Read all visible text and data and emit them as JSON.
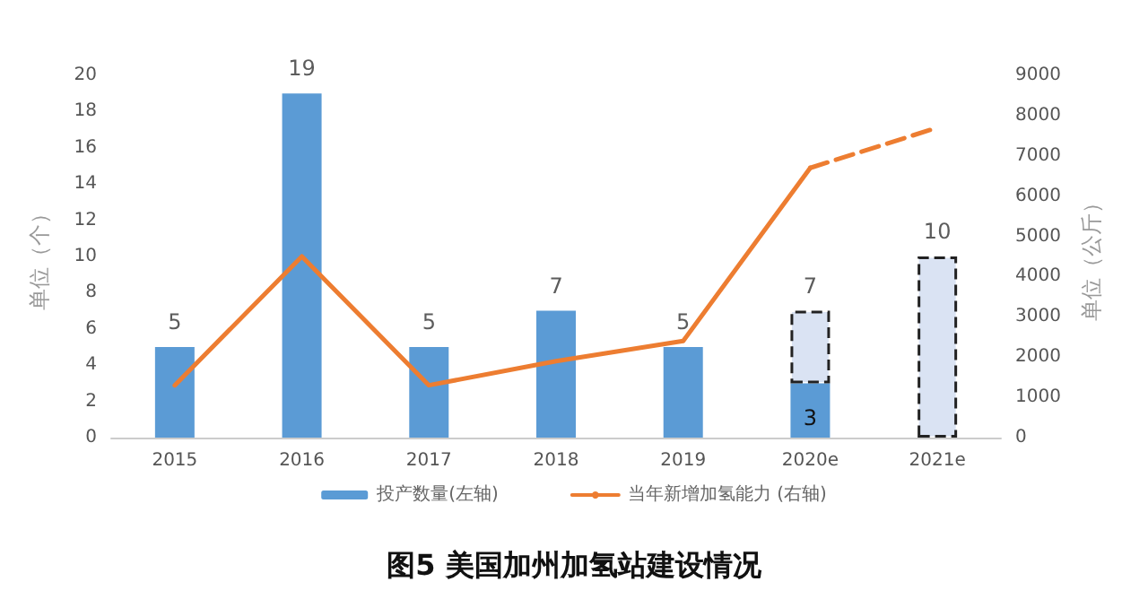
{
  "chart_data": {
    "type": "bar",
    "title": "图5 美国加州加氢站建设情况",
    "categories": [
      "2015",
      "2016",
      "2017",
      "2018",
      "2019",
      "2020e",
      "2021e"
    ],
    "stacked": true,
    "series": [
      {
        "name": "投产数量(左轴)",
        "color": "#5b9bd5",
        "values": [
          5,
          19,
          5,
          7,
          5,
          3,
          null
        ],
        "value_labels": [
          null,
          null,
          null,
          null,
          null,
          "3",
          null
        ]
      },
      {
        "color": "#dae3f3",
        "values": [
          null,
          null,
          null,
          null,
          null,
          4,
          10
        ],
        "line_style": "dashed"
      },
      {
        "name": "当年新增加氢能力 (右轴)",
        "type": "line",
        "axis": "y2",
        "color": "#ed7d31",
        "values": [
          1300,
          4500,
          1300,
          1900,
          2400,
          6700,
          null
        ]
      },
      {
        "type": "line",
        "axis": "y2",
        "color": "#ed7d31",
        "values": [
          null,
          null,
          null,
          null,
          null,
          6700,
          7700
        ],
        "line_style": "dashed"
      }
    ],
    "totals": [
      "5",
      "19",
      "5",
      "7",
      "5",
      "7",
      "10"
    ],
    "ylabel": "单位（个）",
    "y2label": "单位（公斤）",
    "ylim": [
      0,
      20
    ],
    "yticks": [
      0,
      2,
      4,
      6,
      8,
      10,
      12,
      14,
      16,
      18,
      20
    ],
    "y2lim": [
      0,
      9000
    ],
    "y2ticks": [
      0,
      1000,
      2000,
      3000,
      4000,
      5000,
      6000,
      7000,
      8000,
      9000
    ],
    "grid": false,
    "legend": "bottom",
    "marker": "none"
  }
}
